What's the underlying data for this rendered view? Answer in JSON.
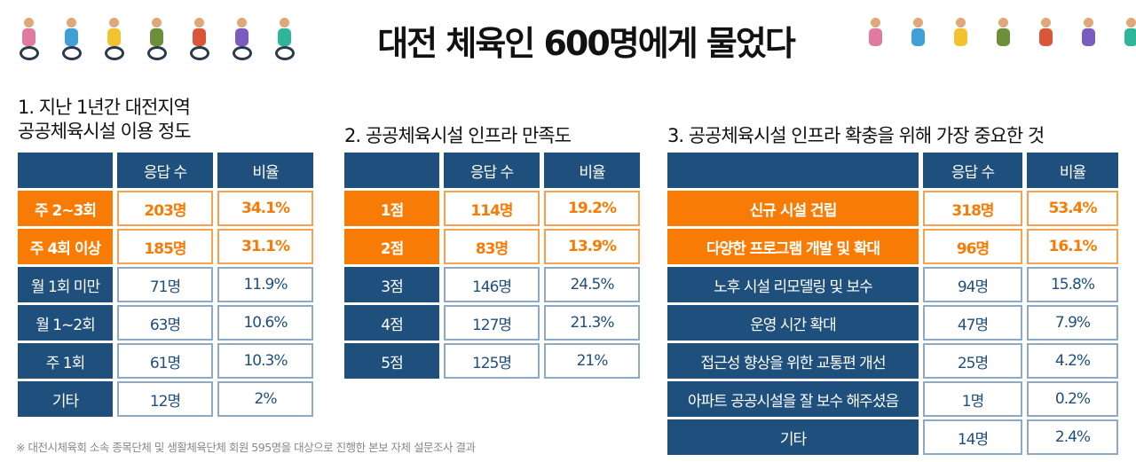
{
  "title": "대전 체육인 600명에게 물었다",
  "colors": {
    "navy": "#1f4f7c",
    "orange": "#f77b05"
  },
  "decorations": [
    "cyclist-icon",
    "scooter-icon",
    "wheelchair-basketball-icon",
    "wheelchair-racer-icon",
    "wheelchair-tennis-icon",
    "wheelchair-athlete-icon",
    "wheelchair-athlete-icon",
    "skater-icon",
    "runner-icon",
    "dancer-icon",
    "rollerblader-icon",
    "athlete-icon",
    "breakdancer-icon",
    "skateboarder-icon"
  ],
  "headers": {
    "count": "응답 수",
    "ratio": "비율"
  },
  "sections": [
    {
      "title_line1": "1. 지난 1년간 대전지역",
      "title_line2": "공공체육시설 이용 정도",
      "rows": [
        {
          "label": "주 2~3회",
          "count": "203명",
          "ratio": "34.1%",
          "highlight": true
        },
        {
          "label": "주 4회 이상",
          "count": "185명",
          "ratio": "31.1%",
          "highlight": true
        },
        {
          "label": "월 1회 미만",
          "count": "71명",
          "ratio": "11.9%"
        },
        {
          "label": "월 1~2회",
          "count": "63명",
          "ratio": "10.6%"
        },
        {
          "label": "주 1회",
          "count": "61명",
          "ratio": "10.3%"
        },
        {
          "label": "기타",
          "count": "12명",
          "ratio": "2%"
        }
      ]
    },
    {
      "title_line1": "2. 공공체육시설 인프라 만족도",
      "rows": [
        {
          "label": "1점",
          "count": "114명",
          "ratio": "19.2%",
          "highlight": true
        },
        {
          "label": "2점",
          "count": "83명",
          "ratio": "13.9%",
          "highlight": true
        },
        {
          "label": "3점",
          "count": "146명",
          "ratio": "24.5%"
        },
        {
          "label": "4점",
          "count": "127명",
          "ratio": "21.3%"
        },
        {
          "label": "5점",
          "count": "125명",
          "ratio": "21%"
        }
      ]
    },
    {
      "title_line1": "3. 공공체육시설 인프라 확충을 위해 가장 중요한 것",
      "rows": [
        {
          "label": "신규 시설 건립",
          "count": "318명",
          "ratio": "53.4%",
          "highlight": true
        },
        {
          "label": "다양한 프로그램 개발 및 확대",
          "count": "96명",
          "ratio": "16.1%",
          "highlight": true
        },
        {
          "label": "노후 시설 리모델링 및 보수",
          "count": "94명",
          "ratio": "15.8%"
        },
        {
          "label": "운영 시간 확대",
          "count": "47명",
          "ratio": "7.9%"
        },
        {
          "label": "접근성 향상을 위한 교통편 개선",
          "count": "25명",
          "ratio": "4.2%"
        },
        {
          "label": "아파트 공공시설을 잘 보수 해주셨음",
          "count": "1명",
          "ratio": "0.2%"
        },
        {
          "label": "기타",
          "count": "14명",
          "ratio": "2.4%"
        }
      ]
    }
  ],
  "footnote": "※ 대전시체육회 소속 종목단체 및 생활체육단체 회원 595명을 대상으로 진행한 본보 자체 설문조사 결과"
}
